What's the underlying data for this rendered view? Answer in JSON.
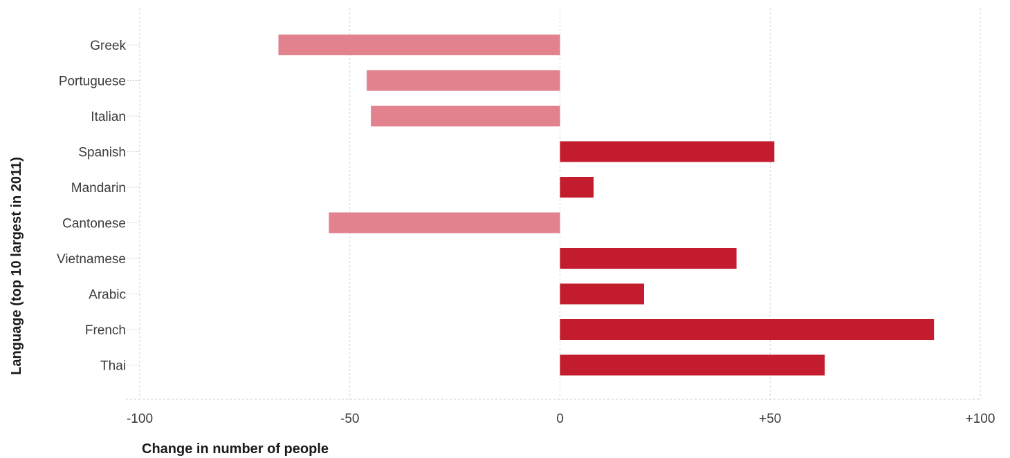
{
  "chart_data": {
    "type": "bar",
    "orientation": "horizontal",
    "title": "",
    "xlabel": "Change in number of people",
    "ylabel": "Language (top 10 largest in 2011)",
    "categories": [
      "Greek",
      "Portuguese",
      "Italian",
      "Spanish",
      "Mandarin",
      "Cantonese",
      "Vietnamese",
      "Arabic",
      "French",
      "Thai"
    ],
    "values": [
      -67,
      -46,
      -45,
      51,
      8,
      -55,
      42,
      20,
      89,
      63
    ],
    "xlim": [
      -100,
      100
    ],
    "xticks": [
      -100,
      -50,
      0,
      50,
      100
    ],
    "xtick_labels": [
      "-100",
      "-50",
      "0",
      "+50",
      "+100"
    ],
    "grid": "vertical dashed",
    "legend": "none",
    "colors": {
      "negative": "#e3828f",
      "positive": "#c21c2e"
    }
  }
}
